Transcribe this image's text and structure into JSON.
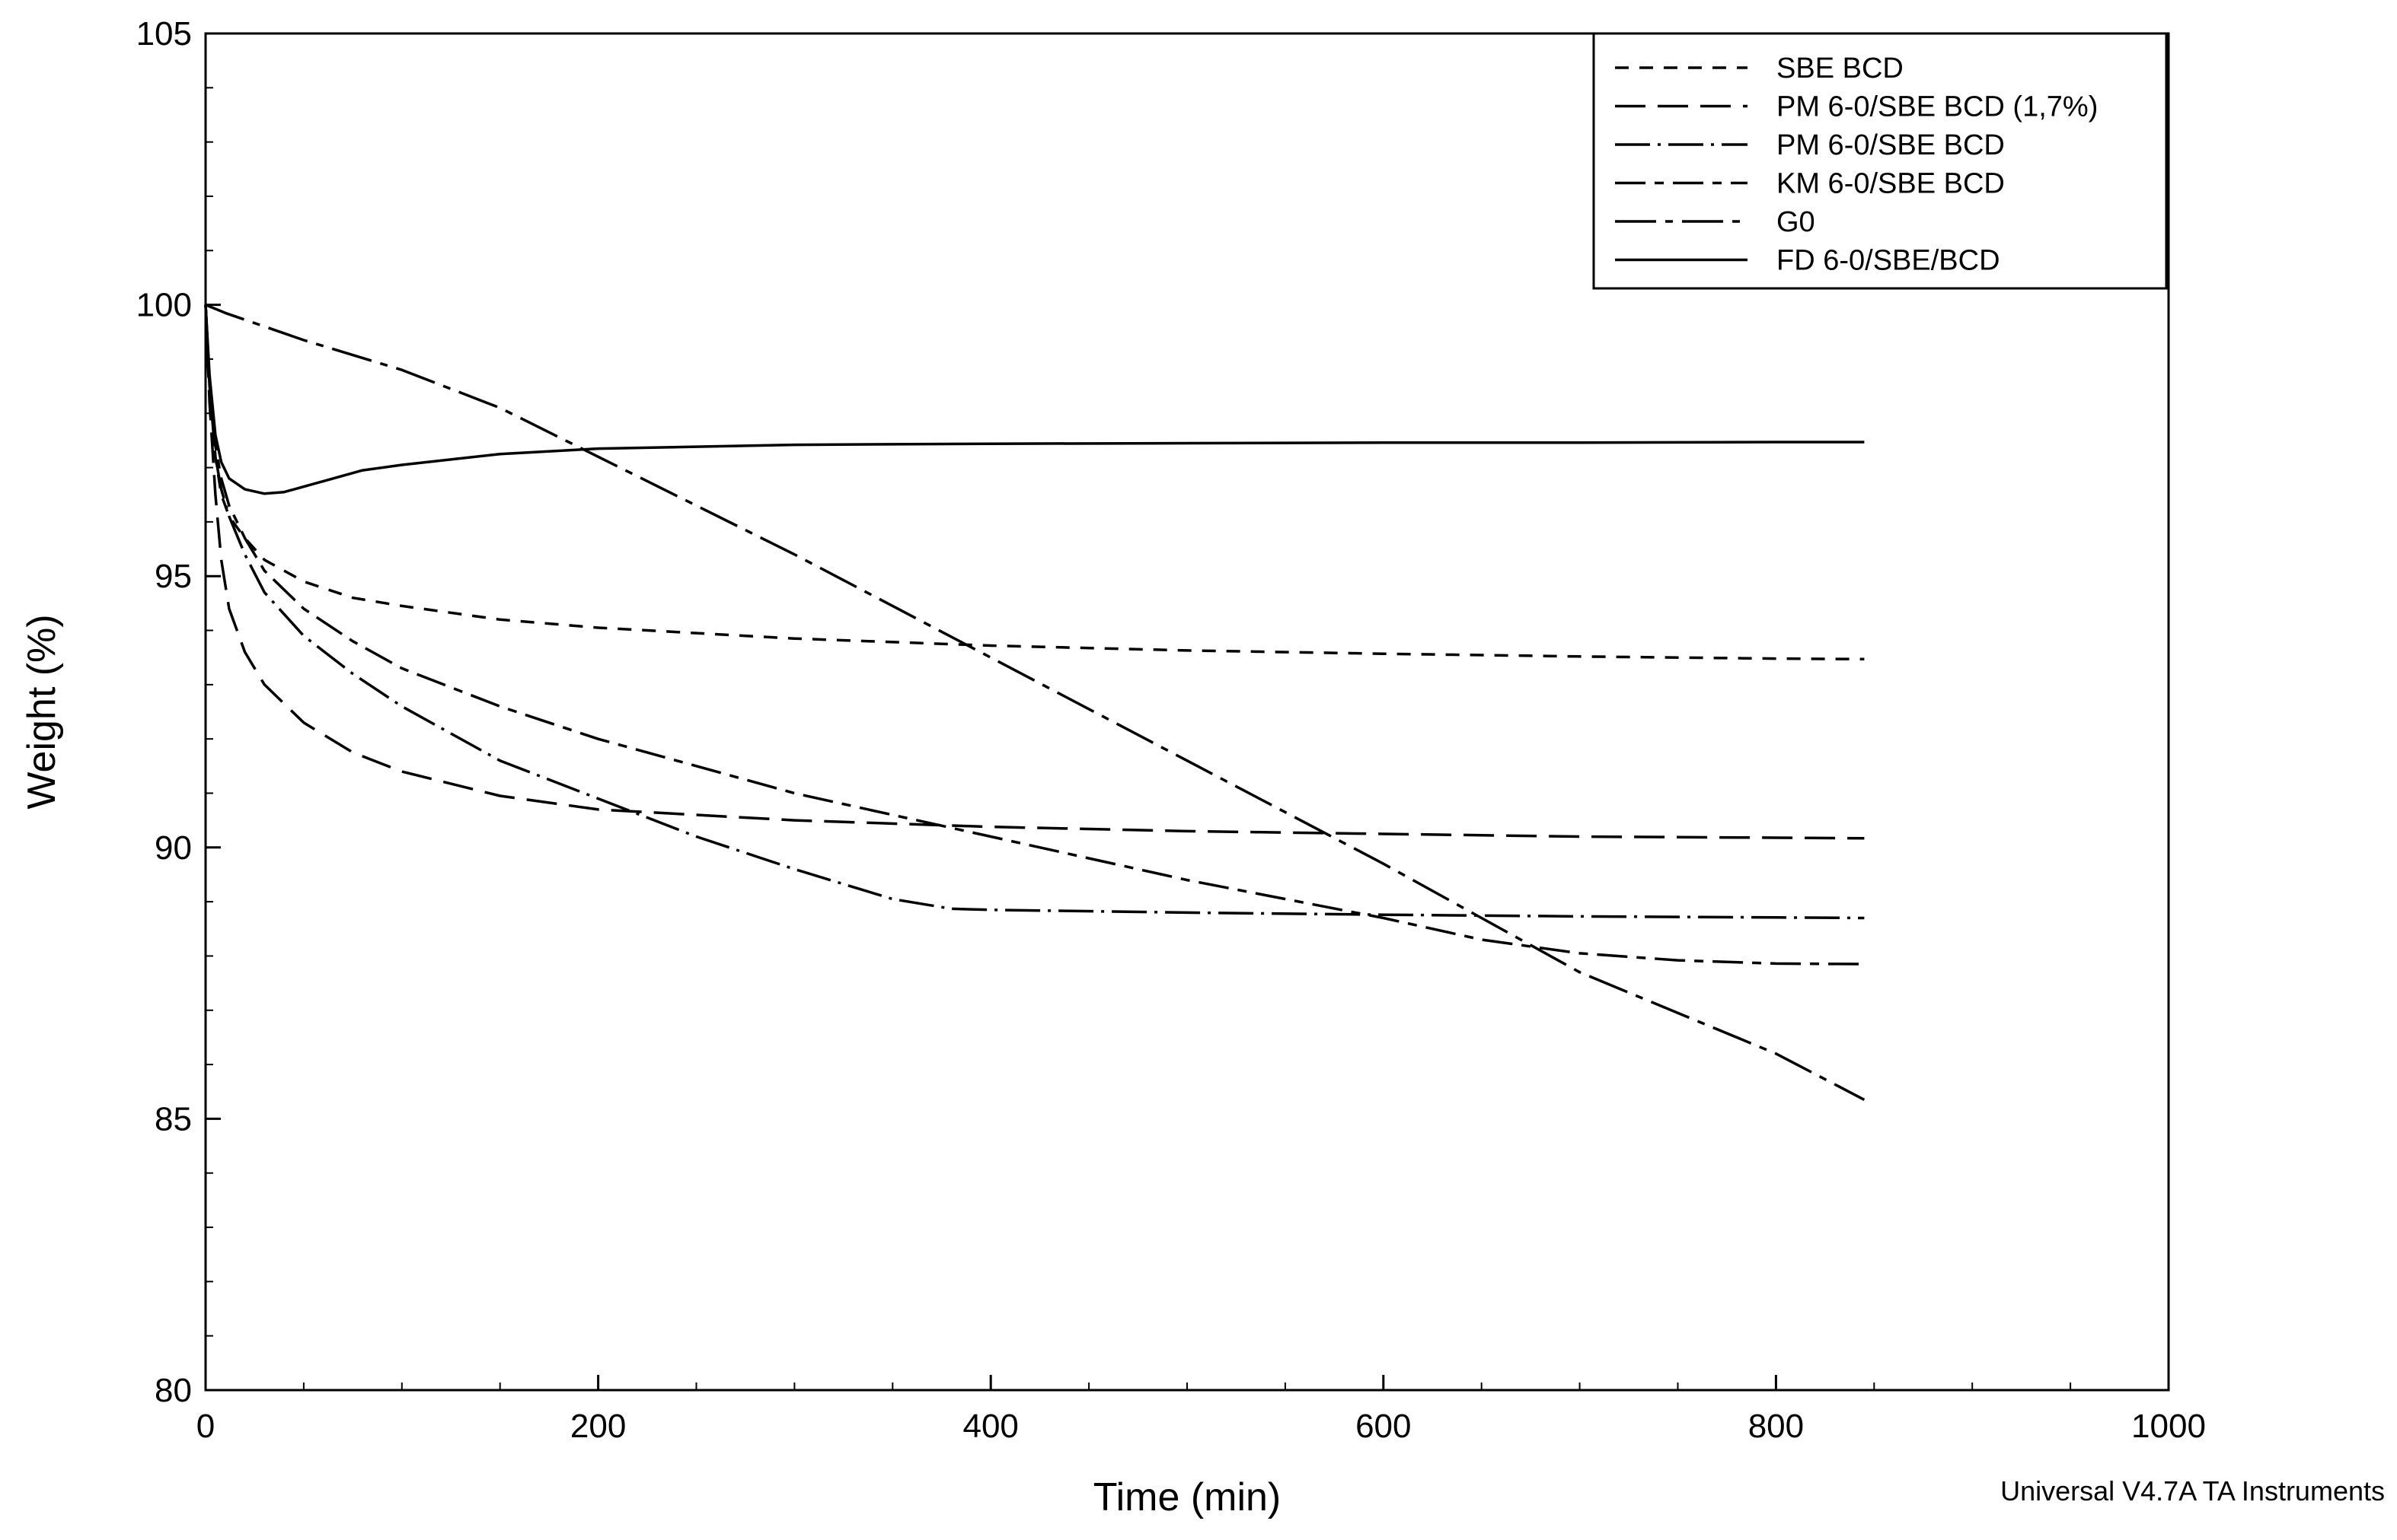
{
  "chart_data": {
    "type": "line",
    "xlabel": "Time (min)",
    "ylabel": "Weight (%)",
    "xlim": [
      0,
      1000
    ],
    "ylim": [
      80,
      105
    ],
    "x_ticks": [
      0,
      200,
      400,
      600,
      800,
      1000
    ],
    "y_ticks": [
      80,
      85,
      90,
      95,
      100,
      105
    ],
    "x_minor_step": 50,
    "y_minor_step": 1,
    "grid": false,
    "legend_position": "top-right",
    "footer": "Universal V4.7A TA Instruments",
    "series": [
      {
        "name": "SBE BCD",
        "dash": "18,14",
        "x": [
          0,
          2,
          5,
          8,
          12,
          20,
          30,
          50,
          75,
          100,
          150,
          200,
          300,
          400,
          500,
          600,
          700,
          800,
          845
        ],
        "y": [
          100,
          98.6,
          97.2,
          96.5,
          96.1,
          95.7,
          95.3,
          94.9,
          94.6,
          94.45,
          94.2,
          94.05,
          93.85,
          93.72,
          93.63,
          93.57,
          93.52,
          93.48,
          93.47
        ]
      },
      {
        "name": "PM 6-0/SBE BCD (1,7%)",
        "dash": "40,16",
        "x": [
          0,
          2,
          5,
          8,
          12,
          20,
          30,
          50,
          75,
          100,
          150,
          200,
          300,
          400,
          500,
          600,
          700,
          800,
          845
        ],
        "y": [
          100,
          98.2,
          96.5,
          95.3,
          94.4,
          93.6,
          93.0,
          92.3,
          91.75,
          91.4,
          90.95,
          90.7,
          90.5,
          90.38,
          90.3,
          90.25,
          90.2,
          90.18,
          90.17
        ]
      },
      {
        "name": "PM 6-0/SBE BCD",
        "dash": "46,10,4,10",
        "x": [
          0,
          2,
          5,
          8,
          12,
          20,
          30,
          50,
          75,
          100,
          150,
          200,
          250,
          300,
          350,
          380,
          400,
          500,
          600,
          700,
          800,
          845
        ],
        "y": [
          100,
          98.5,
          97.2,
          96.6,
          96.1,
          95.4,
          94.7,
          93.9,
          93.2,
          92.6,
          91.6,
          90.9,
          90.2,
          89.6,
          89.05,
          88.87,
          88.85,
          88.8,
          88.76,
          88.73,
          88.71,
          88.7
        ]
      },
      {
        "name": "KM 6-0/SBE BCD",
        "dash": "40,12,12,12",
        "x": [
          0,
          2,
          5,
          8,
          12,
          20,
          30,
          50,
          75,
          100,
          150,
          200,
          250,
          300,
          400,
          500,
          600,
          650,
          700,
          750,
          800,
          845
        ],
        "y": [
          100,
          98.6,
          97.4,
          96.8,
          96.3,
          95.7,
          95.1,
          94.4,
          93.8,
          93.3,
          92.6,
          92.0,
          91.5,
          91.0,
          90.2,
          89.4,
          88.7,
          88.3,
          88.05,
          87.92,
          87.86,
          87.85
        ]
      },
      {
        "name": "G0",
        "dash": "54,12,10,12",
        "x": [
          0,
          10,
          50,
          100,
          150,
          200,
          300,
          400,
          500,
          600,
          700,
          800,
          845
        ],
        "y": [
          100,
          99.85,
          99.35,
          98.8,
          98.1,
          97.2,
          95.4,
          93.5,
          91.6,
          89.7,
          87.7,
          86.2,
          85.35
        ]
      },
      {
        "name": "FD 6-0/SBE/BCD",
        "dash": "none",
        "x": [
          0,
          2,
          5,
          8,
          12,
          20,
          30,
          40,
          60,
          80,
          100,
          150,
          200,
          300,
          400,
          500,
          600,
          700,
          800,
          845
        ],
        "y": [
          100,
          98.7,
          97.6,
          97.1,
          96.8,
          96.6,
          96.52,
          96.55,
          96.75,
          96.95,
          97.05,
          97.25,
          97.35,
          97.42,
          97.44,
          97.45,
          97.46,
          97.46,
          97.47,
          97.47
        ]
      }
    ]
  }
}
